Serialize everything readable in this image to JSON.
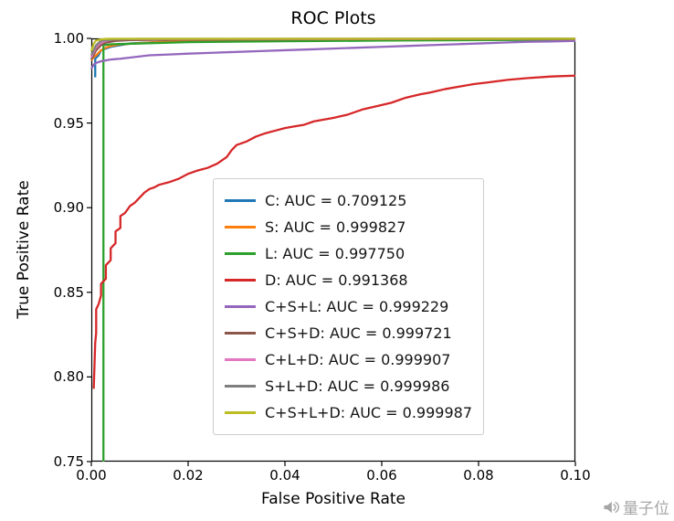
{
  "chart_data": {
    "type": "line",
    "title": "ROC Plots",
    "xlabel": "False Positive Rate",
    "ylabel": "True Positive Rate",
    "xlim": [
      0.0,
      0.1
    ],
    "ylim": [
      0.75,
      1.0
    ],
    "grid": false,
    "legend_position": "center",
    "xticks": [
      {
        "v": 0.0,
        "label": "0.00"
      },
      {
        "v": 0.02,
        "label": "0.02"
      },
      {
        "v": 0.04,
        "label": "0.04"
      },
      {
        "v": 0.06,
        "label": "0.06"
      },
      {
        "v": 0.08,
        "label": "0.08"
      },
      {
        "v": 0.1,
        "label": "0.10"
      }
    ],
    "yticks": [
      {
        "v": 0.75,
        "label": "0.75"
      },
      {
        "v": 0.8,
        "label": "0.80"
      },
      {
        "v": 0.85,
        "label": "0.85"
      },
      {
        "v": 0.9,
        "label": "0.90"
      },
      {
        "v": 0.95,
        "label": "0.95"
      },
      {
        "v": 1.0,
        "label": "1.00"
      }
    ],
    "series": [
      {
        "name": "C",
        "auc": 0.709125,
        "label": "C: AUC = 0.709125",
        "color": "#1f77b4",
        "points": [
          [
            0.0008,
            0.977
          ],
          [
            0.0008,
            0.988
          ],
          [
            0.0015,
            0.99
          ],
          [
            0.002,
            0.993
          ],
          [
            0.004,
            0.995
          ],
          [
            0.008,
            0.997
          ],
          [
            0.015,
            0.998
          ],
          [
            0.03,
            0.9985
          ],
          [
            0.06,
            0.999
          ],
          [
            0.1,
            0.9992
          ]
        ]
      },
      {
        "name": "S",
        "auc": 0.999827,
        "label": "S: AUC = 0.999827",
        "color": "#ff7f0e",
        "points": [
          [
            0.0,
            0.987
          ],
          [
            0.0005,
            0.989
          ],
          [
            0.001,
            0.99
          ],
          [
            0.0015,
            0.9915
          ],
          [
            0.002,
            0.993
          ],
          [
            0.003,
            0.9945
          ],
          [
            0.004,
            0.9955
          ],
          [
            0.006,
            0.9965
          ],
          [
            0.009,
            0.997
          ],
          [
            0.014,
            0.9978
          ],
          [
            0.02,
            0.9983
          ],
          [
            0.04,
            0.9988
          ],
          [
            0.07,
            0.9992
          ],
          [
            0.1,
            0.9995
          ]
        ]
      },
      {
        "name": "L",
        "auc": 0.99775,
        "label": "L: AUC = 0.997750",
        "color": "#2ca02c",
        "points": [
          [
            0.0025,
            0.75
          ],
          [
            0.0025,
            0.996
          ],
          [
            0.004,
            0.9965
          ],
          [
            0.01,
            0.997
          ],
          [
            0.02,
            0.9978
          ],
          [
            0.04,
            0.9983
          ],
          [
            0.06,
            0.9987
          ],
          [
            0.08,
            0.999
          ],
          [
            0.1,
            0.9993
          ]
        ]
      },
      {
        "name": "D",
        "auc": 0.991368,
        "label": "D: AUC = 0.991368",
        "color": "#d62728",
        "points": [
          [
            0.0005,
            0.793
          ],
          [
            0.0008,
            0.82
          ],
          [
            0.001,
            0.826
          ],
          [
            0.001,
            0.84
          ],
          [
            0.0015,
            0.843
          ],
          [
            0.002,
            0.848
          ],
          [
            0.002,
            0.855
          ],
          [
            0.003,
            0.858
          ],
          [
            0.003,
            0.866
          ],
          [
            0.004,
            0.869
          ],
          [
            0.004,
            0.876
          ],
          [
            0.005,
            0.879
          ],
          [
            0.005,
            0.886
          ],
          [
            0.006,
            0.888
          ],
          [
            0.006,
            0.895
          ],
          [
            0.007,
            0.897
          ],
          [
            0.008,
            0.901
          ],
          [
            0.009,
            0.903
          ],
          [
            0.01,
            0.906
          ],
          [
            0.011,
            0.909
          ],
          [
            0.012,
            0.911
          ],
          [
            0.013,
            0.912
          ],
          [
            0.014,
            0.9135
          ],
          [
            0.016,
            0.915
          ],
          [
            0.018,
            0.917
          ],
          [
            0.02,
            0.92
          ],
          [
            0.022,
            0.922
          ],
          [
            0.024,
            0.9235
          ],
          [
            0.026,
            0.926
          ],
          [
            0.028,
            0.93
          ],
          [
            0.029,
            0.934
          ],
          [
            0.03,
            0.937
          ],
          [
            0.032,
            0.939
          ],
          [
            0.034,
            0.942
          ],
          [
            0.036,
            0.944
          ],
          [
            0.038,
            0.9455
          ],
          [
            0.04,
            0.947
          ],
          [
            0.042,
            0.948
          ],
          [
            0.044,
            0.949
          ],
          [
            0.046,
            0.951
          ],
          [
            0.048,
            0.952
          ],
          [
            0.05,
            0.953
          ],
          [
            0.053,
            0.955
          ],
          [
            0.056,
            0.958
          ],
          [
            0.059,
            0.96
          ],
          [
            0.062,
            0.962
          ],
          [
            0.065,
            0.965
          ],
          [
            0.068,
            0.967
          ],
          [
            0.07,
            0.968
          ],
          [
            0.073,
            0.97
          ],
          [
            0.076,
            0.9715
          ],
          [
            0.079,
            0.973
          ],
          [
            0.082,
            0.974
          ],
          [
            0.086,
            0.9755
          ],
          [
            0.09,
            0.9765
          ],
          [
            0.095,
            0.9775
          ],
          [
            0.1,
            0.978
          ]
        ]
      },
      {
        "name": "C+S+L",
        "auc": 0.999229,
        "label": "C+S+L: AUC = 0.999229",
        "color": "#9467bd",
        "points": [
          [
            0.0,
            0.982
          ],
          [
            0.0005,
            0.9845
          ],
          [
            0.001,
            0.9855
          ],
          [
            0.002,
            0.9865
          ],
          [
            0.004,
            0.9875
          ],
          [
            0.006,
            0.988
          ],
          [
            0.009,
            0.989
          ],
          [
            0.012,
            0.99
          ],
          [
            0.016,
            0.9905
          ],
          [
            0.02,
            0.991
          ],
          [
            0.025,
            0.9915
          ],
          [
            0.03,
            0.992
          ],
          [
            0.035,
            0.9925
          ],
          [
            0.04,
            0.993
          ],
          [
            0.045,
            0.9935
          ],
          [
            0.05,
            0.994
          ],
          [
            0.055,
            0.9945
          ],
          [
            0.06,
            0.995
          ],
          [
            0.065,
            0.9955
          ],
          [
            0.07,
            0.996
          ],
          [
            0.075,
            0.9965
          ],
          [
            0.08,
            0.997
          ],
          [
            0.085,
            0.9975
          ],
          [
            0.09,
            0.998
          ],
          [
            0.095,
            0.9982
          ],
          [
            0.1,
            0.9985
          ]
        ]
      },
      {
        "name": "C+S+D",
        "auc": 0.999721,
        "label": "C+S+D: AUC = 0.999721",
        "color": "#8c564b",
        "points": [
          [
            0.0,
            0.9875
          ],
          [
            0.001,
            0.993
          ],
          [
            0.002,
            0.996
          ],
          [
            0.003,
            0.9975
          ],
          [
            0.005,
            0.9985
          ],
          [
            0.008,
            0.999
          ],
          [
            0.02,
            0.9993
          ],
          [
            0.05,
            0.9995
          ],
          [
            0.1,
            0.9997
          ]
        ]
      },
      {
        "name": "C+L+D",
        "auc": 0.999907,
        "label": "C+L+D: AUC = 0.999907",
        "color": "#e377c2",
        "points": [
          [
            0.0,
            0.989
          ],
          [
            0.001,
            0.995
          ],
          [
            0.002,
            0.9975
          ],
          [
            0.003,
            0.9985
          ],
          [
            0.004,
            0.9992
          ],
          [
            0.005,
            0.9995
          ],
          [
            0.01,
            0.9996
          ],
          [
            0.05,
            0.9997
          ],
          [
            0.1,
            0.9998
          ]
        ]
      },
      {
        "name": "S+L+D",
        "auc": 0.999986,
        "label": "S+L+D: AUC = 0.999986",
        "color": "#7f7f7f",
        "points": [
          [
            0.0,
            0.99
          ],
          [
            0.001,
            0.996
          ],
          [
            0.002,
            0.9985
          ],
          [
            0.004,
            0.9992
          ],
          [
            0.006,
            0.9995
          ],
          [
            0.01,
            0.9997
          ],
          [
            0.05,
            0.9998
          ],
          [
            0.1,
            0.9999
          ]
        ]
      },
      {
        "name": "C+S+L+D",
        "auc": 0.999987,
        "label": "C+S+L+D: AUC = 0.999987",
        "color": "#bcbd22",
        "points": [
          [
            0.0,
            0.9925
          ],
          [
            0.0005,
            0.997
          ],
          [
            0.001,
            0.9988
          ],
          [
            0.002,
            0.9994
          ],
          [
            0.003,
            0.9997
          ],
          [
            0.005,
            0.9998
          ],
          [
            0.1,
            0.9998
          ]
        ]
      }
    ]
  },
  "watermark": {
    "text": "量子位",
    "icon": "speaker-icon"
  }
}
